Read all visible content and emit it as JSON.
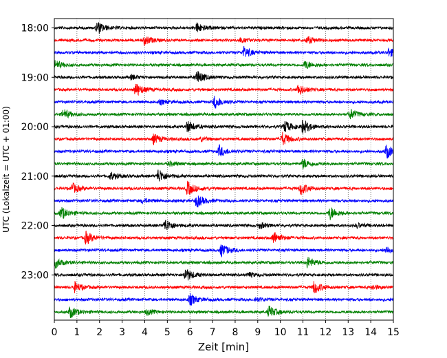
{
  "chart_data": {
    "type": "line",
    "title": "",
    "xlabel": "Zeit  [min]",
    "ylabel": "UTC (Lokalzeit = UTC + 01:00)",
    "xlim": [
      0,
      15
    ],
    "x_ticks": [
      "0",
      "1",
      "2",
      "3",
      "4",
      "5",
      "6",
      "7",
      "8",
      "9",
      "10",
      "11",
      "12",
      "13",
      "14",
      "15"
    ],
    "y_ticks": [
      "18:00",
      "19:00",
      "20:00",
      "21:00",
      "22:00",
      "23:00"
    ],
    "grid": "x dotted",
    "colors": [
      "#000000",
      "#ff0000",
      "#0000ff",
      "#008000"
    ],
    "traces": [
      {
        "start": "18:00",
        "color": "#000000",
        "events": [
          [
            2.0,
            0.9
          ],
          [
            6.4,
            0.7
          ]
        ]
      },
      {
        "start": "18:15",
        "color": "#ff0000",
        "events": [
          [
            4.1,
            0.7
          ],
          [
            8.3,
            0.3
          ],
          [
            11.3,
            0.5
          ]
        ]
      },
      {
        "start": "18:30",
        "color": "#0000ff",
        "events": [
          [
            8.5,
            0.8
          ],
          [
            14.9,
            0.6
          ]
        ]
      },
      {
        "start": "18:45",
        "color": "#008000",
        "events": [
          [
            0.1,
            0.7
          ],
          [
            11.2,
            0.6
          ]
        ]
      },
      {
        "start": "19:00",
        "color": "#000000",
        "events": [
          [
            6.4,
            1.0
          ],
          [
            3.5,
            0.3
          ]
        ]
      },
      {
        "start": "19:15",
        "color": "#ff0000",
        "events": [
          [
            3.7,
            1.0
          ],
          [
            10.9,
            0.8
          ]
        ]
      },
      {
        "start": "19:30",
        "color": "#0000ff",
        "events": [
          [
            7.2,
            0.9
          ],
          [
            4.8,
            0.3
          ]
        ]
      },
      {
        "start": "19:45",
        "color": "#008000",
        "events": [
          [
            0.5,
            0.7
          ],
          [
            13.2,
            0.7
          ]
        ]
      },
      {
        "start": "20:00",
        "color": "#000000",
        "events": [
          [
            6.0,
            0.8
          ],
          [
            11.1,
            1.0
          ],
          [
            10.3,
            0.8
          ]
        ]
      },
      {
        "start": "20:15",
        "color": "#ff0000",
        "events": [
          [
            4.5,
            0.7
          ],
          [
            10.2,
            0.9
          ],
          [
            6.6,
            0.3
          ]
        ]
      },
      {
        "start": "20:30",
        "color": "#0000ff",
        "events": [
          [
            7.4,
            0.8
          ],
          [
            14.8,
            1.0
          ]
        ]
      },
      {
        "start": "20:45",
        "color": "#008000",
        "events": [
          [
            11.1,
            0.7
          ],
          [
            5.2,
            0.3
          ]
        ]
      },
      {
        "start": "21:00",
        "color": "#000000",
        "events": [
          [
            2.6,
            0.5
          ],
          [
            4.7,
            1.0
          ]
        ]
      },
      {
        "start": "21:15",
        "color": "#ff0000",
        "events": [
          [
            0.9,
            0.7
          ],
          [
            6.0,
            1.0
          ],
          [
            11.0,
            0.9
          ]
        ]
      },
      {
        "start": "21:30",
        "color": "#0000ff",
        "events": [
          [
            6.4,
            0.9
          ],
          [
            4.0,
            0.3
          ]
        ]
      },
      {
        "start": "21:45",
        "color": "#008000",
        "events": [
          [
            0.4,
            0.9
          ],
          [
            12.3,
            0.9
          ]
        ]
      },
      {
        "start": "22:00",
        "color": "#000000",
        "events": [
          [
            5.0,
            0.9
          ],
          [
            9.2,
            0.4
          ],
          [
            13.5,
            0.3
          ]
        ]
      },
      {
        "start": "22:15",
        "color": "#ff0000",
        "events": [
          [
            1.5,
            0.9
          ],
          [
            9.8,
            0.9
          ]
        ]
      },
      {
        "start": "22:30",
        "color": "#0000ff",
        "events": [
          [
            7.5,
            0.9
          ],
          [
            14.8,
            0.5
          ]
        ]
      },
      {
        "start": "22:45",
        "color": "#008000",
        "events": [
          [
            0.1,
            0.8
          ],
          [
            11.3,
            0.8
          ]
        ]
      },
      {
        "start": "23:00",
        "color": "#000000",
        "events": [
          [
            5.9,
            1.0
          ],
          [
            8.7,
            0.3
          ]
        ]
      },
      {
        "start": "23:15",
        "color": "#ff0000",
        "events": [
          [
            1.0,
            0.7
          ],
          [
            11.6,
            0.9
          ],
          [
            14.2,
            0.3
          ]
        ]
      },
      {
        "start": "23:30",
        "color": "#0000ff",
        "events": [
          [
            6.1,
            0.8
          ],
          [
            9.0,
            0.3
          ]
        ]
      },
      {
        "start": "23:45",
        "color": "#008000",
        "events": [
          [
            0.8,
            0.8
          ],
          [
            9.6,
            0.8
          ],
          [
            4.2,
            0.4
          ]
        ]
      }
    ]
  }
}
